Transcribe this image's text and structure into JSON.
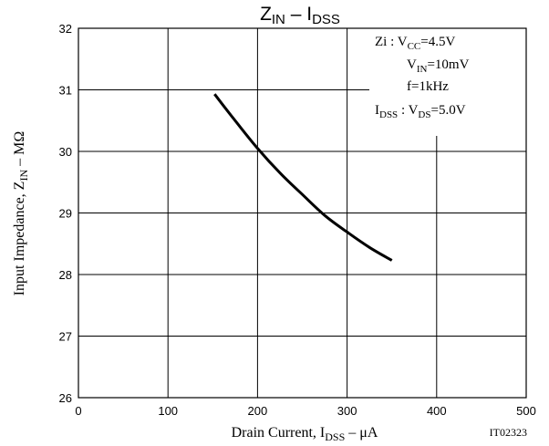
{
  "chart_data": {
    "type": "line",
    "title": {
      "main": "Z",
      "main_sub": "IN",
      "sep": " – ",
      "rhs": "I",
      "rhs_sub": "DSS"
    },
    "xlabel": {
      "main": "Drain Current, I",
      "sub": "DSS",
      "unit": " – μA"
    },
    "ylabel": {
      "main": "Input Impedance, Z",
      "sub": "IN",
      "unit": " – MΩ"
    },
    "xlim": [
      0,
      500
    ],
    "ylim": [
      26,
      32
    ],
    "xticks": [
      0,
      100,
      200,
      300,
      400,
      500
    ],
    "yticks": [
      26,
      27,
      28,
      29,
      30,
      31,
      32
    ],
    "grid": true,
    "series": [
      {
        "x": [
          152,
          175,
          200,
          225,
          250,
          275,
          300,
          325,
          350
        ],
        "y": [
          30.93,
          30.5,
          30.05,
          29.65,
          29.3,
          28.96,
          28.69,
          28.44,
          28.23
        ]
      }
    ],
    "conditions": [
      {
        "a": "Zi : V",
        "a_sub": "CC",
        "b": "=4.5V"
      },
      {
        "a": "V",
        "a_sub": "IN",
        "b": "=10mV"
      },
      {
        "a": "f=1kHz",
        "a_sub": "",
        "b": ""
      },
      {
        "a": "I",
        "a_sub": "DSS",
        "b": " : V",
        "b_sub": "DS",
        "c": "=5.0V"
      }
    ],
    "figure_code": "IT02323"
  }
}
